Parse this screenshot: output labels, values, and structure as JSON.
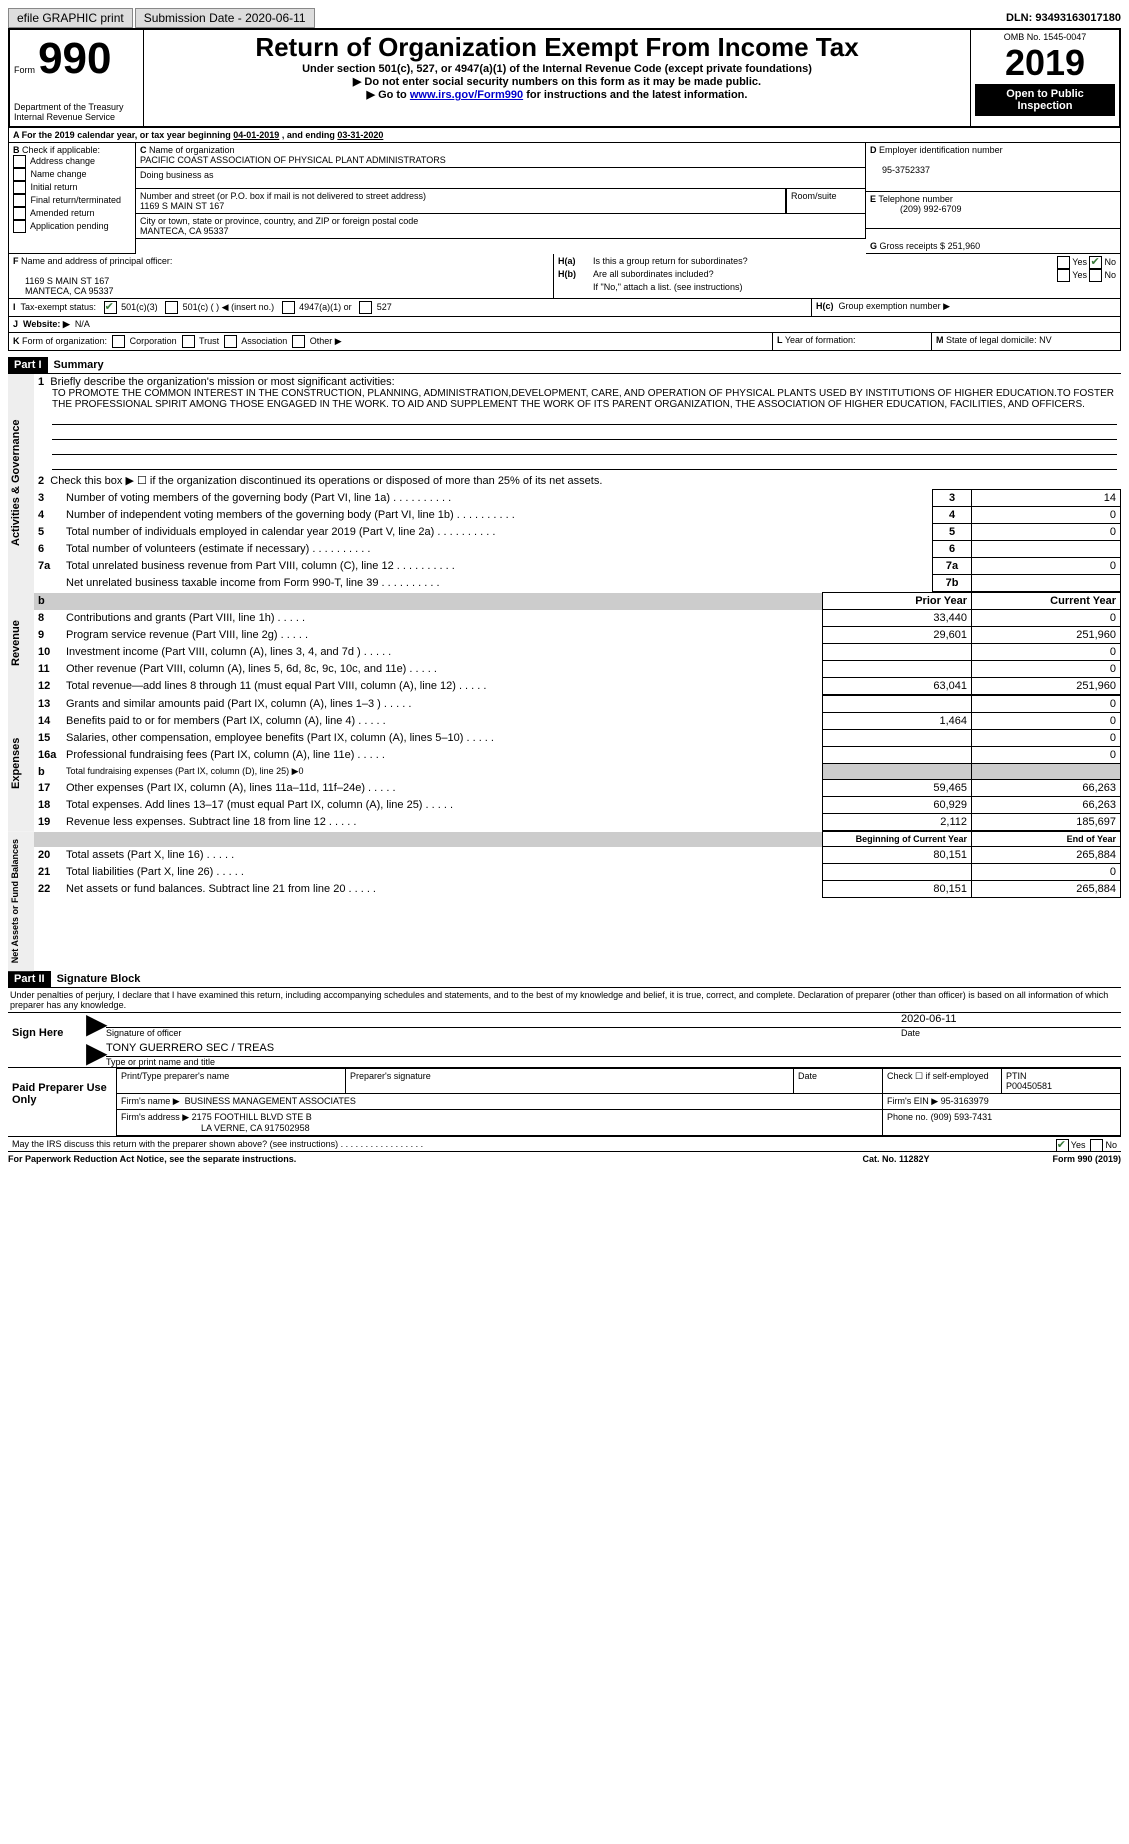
{
  "topbar": {
    "efile_label": "efile GRAPHIC print",
    "submission": "Submission Date - 2020-06-11",
    "dln": "DLN: 93493163017180"
  },
  "header": {
    "form_label": "Form",
    "form_num": "990",
    "title": "Return of Organization Exempt From Income Tax",
    "subtitle1": "Under section 501(c), 527, or 4947(a)(1) of the Internal Revenue Code (except private foundations)",
    "subtitle2": "▶ Do not enter social security numbers on this form as it may be made public.",
    "subtitle3_pre": "▶ Go to ",
    "subtitle3_link": "www.irs.gov/Form990",
    "subtitle3_post": " for instructions and the latest information.",
    "dept": "Department of the Treasury\nInternal Revenue Service",
    "omb": "OMB No. 1545-0047",
    "year": "2019",
    "open": "Open to Public Inspection"
  },
  "A": {
    "text_pre": "For the 2019 calendar year, or tax year beginning ",
    "begin": "04-01-2019",
    "mid": " , and ending ",
    "end": "03-31-2020"
  },
  "B": {
    "label": "Check if applicable:",
    "items": [
      "Address change",
      "Name change",
      "Initial return",
      "Final return/terminated",
      "Amended return",
      "Application pending"
    ]
  },
  "C": {
    "name_lbl": "Name of organization",
    "name": "PACIFIC COAST ASSOCIATION OF PHYSICAL PLANT ADMINISTRATORS",
    "dba_lbl": "Doing business as",
    "street_lbl": "Number and street (or P.O. box if mail is not delivered to street address)",
    "street": "1169 S MAIN ST 167",
    "room_lbl": "Room/suite",
    "city_lbl": "City or town, state or province, country, and ZIP or foreign postal code",
    "city": "MANTECA, CA  95337"
  },
  "D": {
    "lbl": "Employer identification number",
    "val": "95-3752337"
  },
  "E": {
    "lbl": "Telephone number",
    "val": "(209) 992-6709"
  },
  "G": {
    "lbl": "Gross receipts $",
    "val": "251,960"
  },
  "F": {
    "lbl": "Name and address of principal officer:",
    "addr1": "1169 S MAIN ST 167",
    "addr2": "MANTECA, CA  95337"
  },
  "H": {
    "a_lbl": "Is this a group return for subordinates?",
    "b_lbl": "Are all subordinates included?",
    "b_note": "If \"No,\" attach a list. (see instructions)",
    "c_lbl": "Group exemption number ▶",
    "yes": "Yes",
    "no": "No"
  },
  "I": {
    "lbl": "Tax-exempt status:",
    "opts": [
      "501(c)(3)",
      "501(c) (   ) ◀ (insert no.)",
      "4947(a)(1) or",
      "527"
    ]
  },
  "J": {
    "lbl": "Website: ▶",
    "val": "N/A"
  },
  "K": {
    "lbl": "Form of organization:",
    "opts": [
      "Corporation",
      "Trust",
      "Association",
      "Other ▶"
    ]
  },
  "L": {
    "lbl": "Year of formation:"
  },
  "M": {
    "lbl": "State of legal domicile:",
    "val": "NV"
  },
  "part1": {
    "num": "Part I",
    "title": "Summary"
  },
  "mission_lbl": "Briefly describe the organization's mission or most significant activities:",
  "mission": "TO PROMOTE THE COMMON INTEREST IN THE CONSTRUCTION, PLANNING, ADMINISTRATION,DEVELOPMENT, CARE, AND OPERATION OF PHYSICAL PLANTS USED BY INSTITUTIONS OF HIGHER EDUCATION.TO FOSTER THE PROFESSIONAL SPIRIT AMONG THOSE ENGAGED IN THE WORK. TO AID AND SUPPLEMENT THE WORK OF ITS PARENT ORGANIZATION, THE ASSOCIATION OF HIGHER EDUCATION, FACILITIES, AND OFFICERS.",
  "line2": "Check this box ▶ ☐ if the organization discontinued its operations or disposed of more than 25% of its net assets.",
  "gov_rows": [
    {
      "n": "3",
      "t": "Number of voting members of the governing body (Part VI, line 1a)",
      "box": "3",
      "v": "14"
    },
    {
      "n": "4",
      "t": "Number of independent voting members of the governing body (Part VI, line 1b)",
      "box": "4",
      "v": "0"
    },
    {
      "n": "5",
      "t": "Total number of individuals employed in calendar year 2019 (Part V, line 2a)",
      "box": "5",
      "v": "0"
    },
    {
      "n": "6",
      "t": "Total number of volunteers (estimate if necessary)",
      "box": "6",
      "v": ""
    },
    {
      "n": "7a",
      "t": "Total unrelated business revenue from Part VIII, column (C), line 12",
      "box": "7a",
      "v": "0"
    },
    {
      "n": "",
      "t": "Net unrelated business taxable income from Form 990-T, line 39",
      "box": "7b",
      "v": ""
    }
  ],
  "cols": {
    "prior": "Prior Year",
    "current": "Current Year",
    "boy": "Beginning of Current Year",
    "eoy": "End of Year"
  },
  "rev": [
    {
      "n": "8",
      "t": "Contributions and grants (Part VIII, line 1h)",
      "p": "33,440",
      "c": "0"
    },
    {
      "n": "9",
      "t": "Program service revenue (Part VIII, line 2g)",
      "p": "29,601",
      "c": "251,960"
    },
    {
      "n": "10",
      "t": "Investment income (Part VIII, column (A), lines 3, 4, and 7d )",
      "p": "",
      "c": "0"
    },
    {
      "n": "11",
      "t": "Other revenue (Part VIII, column (A), lines 5, 6d, 8c, 9c, 10c, and 11e)",
      "p": "",
      "c": "0"
    },
    {
      "n": "12",
      "t": "Total revenue—add lines 8 through 11 (must equal Part VIII, column (A), line 12)",
      "p": "63,041",
      "c": "251,960"
    }
  ],
  "exp": [
    {
      "n": "13",
      "t": "Grants and similar amounts paid (Part IX, column (A), lines 1–3 )",
      "p": "",
      "c": "0"
    },
    {
      "n": "14",
      "t": "Benefits paid to or for members (Part IX, column (A), line 4)",
      "p": "1,464",
      "c": "0"
    },
    {
      "n": "15",
      "t": "Salaries, other compensation, employee benefits (Part IX, column (A), lines 5–10)",
      "p": "",
      "c": "0"
    },
    {
      "n": "16a",
      "t": "Professional fundraising fees (Part IX, column (A), line 11e)",
      "p": "",
      "c": "0"
    },
    {
      "n": "b",
      "t": "Total fundraising expenses (Part IX, column (D), line 25) ▶0",
      "p": null,
      "c": null
    },
    {
      "n": "17",
      "t": "Other expenses (Part IX, column (A), lines 11a–11d, 11f–24e)",
      "p": "59,465",
      "c": "66,263"
    },
    {
      "n": "18",
      "t": "Total expenses. Add lines 13–17 (must equal Part IX, column (A), line 25)",
      "p": "60,929",
      "c": "66,263"
    },
    {
      "n": "19",
      "t": "Revenue less expenses. Subtract line 18 from line 12",
      "p": "2,112",
      "c": "185,697"
    }
  ],
  "net": [
    {
      "n": "20",
      "t": "Total assets (Part X, line 16)",
      "p": "80,151",
      "c": "265,884"
    },
    {
      "n": "21",
      "t": "Total liabilities (Part X, line 26)",
      "p": "",
      "c": "0"
    },
    {
      "n": "22",
      "t": "Net assets or fund balances. Subtract line 21 from line 20",
      "p": "80,151",
      "c": "265,884"
    }
  ],
  "part2": {
    "num": "Part II",
    "title": "Signature Block"
  },
  "perjury": "Under penalties of perjury, I declare that I have examined this return, including accompanying schedules and statements, and to the best of my knowledge and belief, it is true, correct, and complete. Declaration of preparer (other than officer) is based on all information of which preparer has any knowledge.",
  "sign": {
    "here": "Sign Here",
    "sig_lbl": "Signature of officer",
    "date_lbl": "Date",
    "date": "2020-06-11",
    "name": "TONY GUERRERO  SEC / TREAS",
    "name_lbl": "Type or print name and title"
  },
  "paid": {
    "hdr": "Paid Preparer Use Only",
    "ptname_lbl": "Print/Type preparer's name",
    "psig_lbl": "Preparer's signature",
    "date_lbl": "Date",
    "self_lbl": "Check ☐ if self-employed",
    "ptin_lbl": "PTIN",
    "ptin": "P00450581",
    "firm_name_lbl": "Firm's name   ▶",
    "firm_name": "BUSINESS MANAGEMENT ASSOCIATES",
    "firm_ein_lbl": "Firm's EIN ▶",
    "firm_ein": "95-3163979",
    "firm_addr_lbl": "Firm's address ▶",
    "firm_addr1": "2175 FOOTHILL BLVD STE B",
    "firm_addr2": "LA VERNE, CA  917502958",
    "phone_lbl": "Phone no.",
    "phone": "(909) 593-7431"
  },
  "footer": {
    "irs_q": "May the IRS discuss this return with the preparer shown above? (see instructions)",
    "notice": "For Paperwork Reduction Act Notice, see the separate instructions.",
    "cat": "Cat. No. 11282Y",
    "formref": "Form 990 (2019)"
  },
  "sections": {
    "gov": "Activities & Governance",
    "rev": "Revenue",
    "exp": "Expenses",
    "net": "Net Assets or Fund Balances"
  }
}
